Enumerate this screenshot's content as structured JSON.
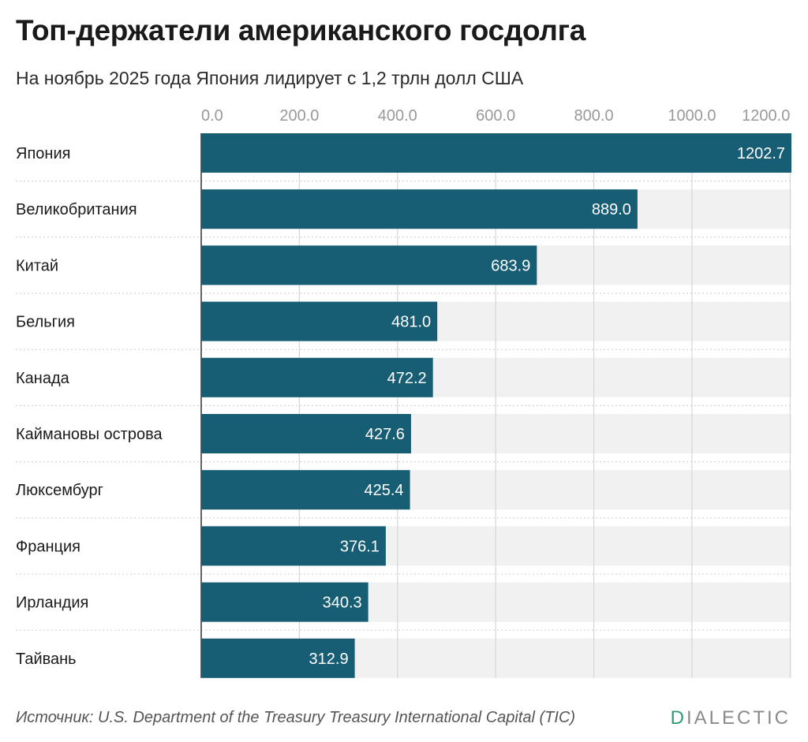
{
  "header": {
    "title": "Топ-держатели американского госдолга",
    "subtitle": "На ноябрь 2025 года Япония лидирует с 1,2 трлн долл США"
  },
  "footer": {
    "source": "Источник: U.S. Department of the Treasury Treasury International Capital (TIC)",
    "logo_first": "D",
    "logo_rest": "IALECTIC"
  },
  "colors": {
    "bar": "#175e75",
    "track": "#f1f1f1",
    "gridline": "#d6d6d6",
    "tick_label": "#999999",
    "value_label": "#ffffff",
    "category_label": "#1a1a1a",
    "logo_accent": "#2e9b76"
  },
  "chart_data": {
    "type": "bar",
    "orientation": "horizontal",
    "title": "Топ-держатели американского госдолга",
    "subtitle": "На ноябрь 2025 года Япония лидирует с 1,2 трлн долл США",
    "categories": [
      "Япония",
      "Великобритания",
      "Китай",
      "Бельгия",
      "Канада",
      "Каймановы острова",
      "Люксембург",
      "Франция",
      "Ирландия",
      "Тайвань"
    ],
    "values": [
      1202.7,
      889.0,
      683.9,
      481.0,
      472.2,
      427.6,
      425.4,
      376.1,
      340.3,
      312.9
    ],
    "value_labels": [
      "1202.7",
      "889.0",
      "683.9",
      "481.0",
      "472.2",
      "427.6",
      "425.4",
      "376.1",
      "340.3",
      "312.9"
    ],
    "xticks": [
      0,
      200,
      400,
      600,
      800,
      1000,
      1200
    ],
    "xtick_labels": [
      "0.0",
      "200.0",
      "400.0",
      "600.0",
      "800.0",
      "1000.0",
      "1200.0"
    ],
    "xlim": [
      0,
      1202.7
    ],
    "xlabel": "",
    "ylabel": "",
    "grid": true,
    "axis_position": "top"
  }
}
